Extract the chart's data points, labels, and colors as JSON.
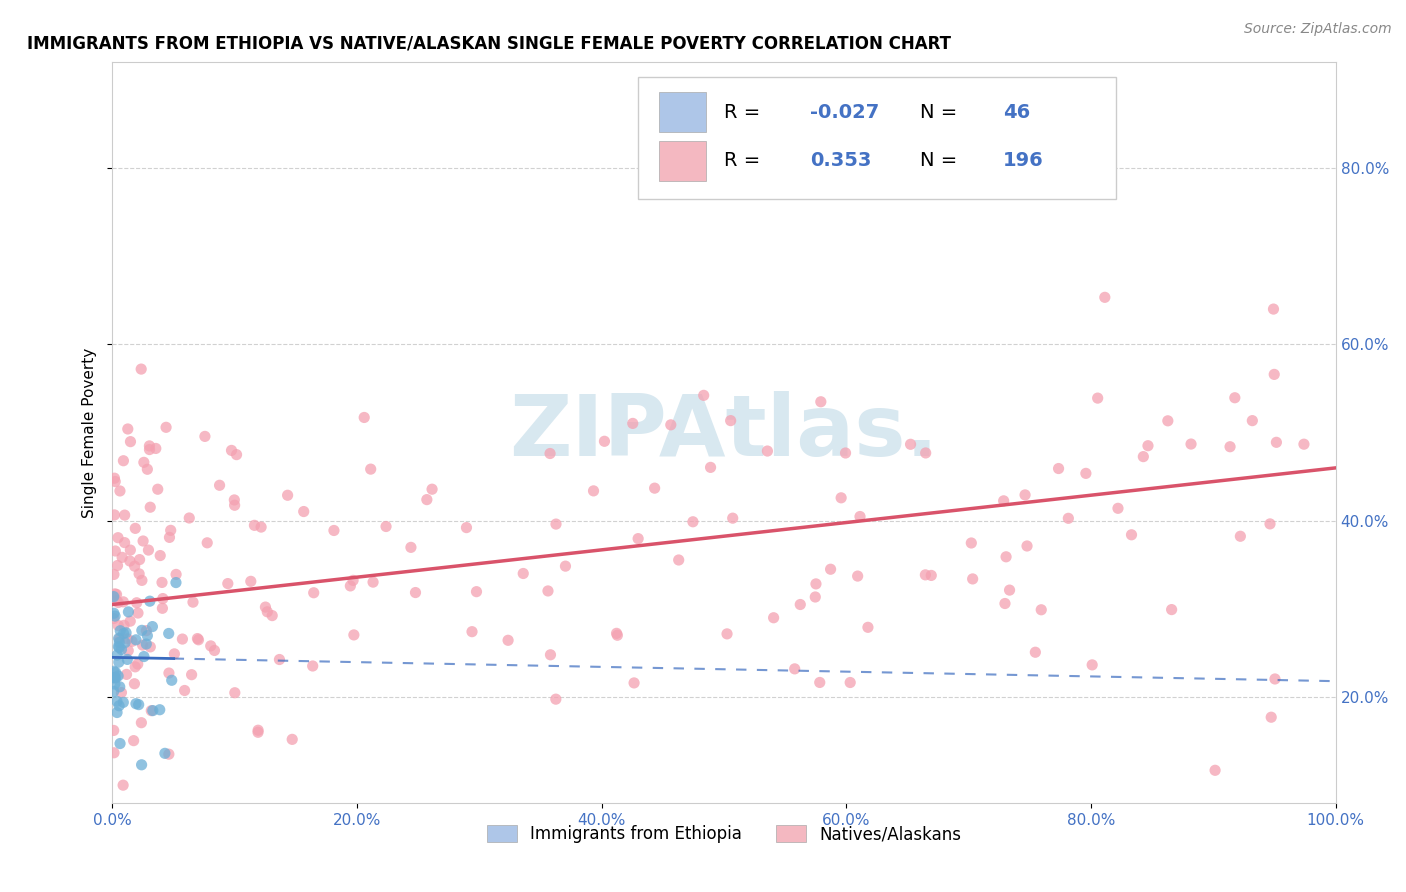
{
  "title": "IMMIGRANTS FROM ETHIOPIA VS NATIVE/ALASKAN SINGLE FEMALE POVERTY CORRELATION CHART",
  "source": "Source: ZipAtlas.com",
  "ylabel": "Single Female Poverty",
  "xlim": [
    0.0,
    1.0
  ],
  "ylim": [
    0.08,
    0.92
  ],
  "xticks": [
    0.0,
    0.2,
    0.4,
    0.6,
    0.8,
    1.0
  ],
  "xtick_labels": [
    "0.0%",
    "20.0%",
    "40.0%",
    "60.0%",
    "80.0%",
    "100.0%"
  ],
  "yticks": [
    0.2,
    0.4,
    0.6,
    0.8
  ],
  "ytick_labels": [
    "20.0%",
    "40.0%",
    "60.0%",
    "80.0%"
  ],
  "legend_entry1": {
    "color": "#aec6e8",
    "R": "-0.027",
    "N": "46"
  },
  "legend_entry2": {
    "color": "#f4b8c1",
    "R": "0.353",
    "N": "196"
  },
  "blue_scatter_color": "#6baed6",
  "blue_line_color": "#3a6bbf",
  "pink_scatter_color": "#f4a0b0",
  "pink_line_color": "#d9536a",
  "background_color": "#ffffff",
  "grid_color": "#cccccc",
  "watermark_color": "#d8e8f0",
  "title_fontsize": 12,
  "label_fontsize": 11,
  "tick_fontsize": 11,
  "legend_fontsize": 14,
  "source_fontsize": 10,
  "blue_line_intercept": 0.245,
  "blue_line_slope": -0.027,
  "pink_line_intercept": 0.305,
  "pink_line_slope": 0.155
}
